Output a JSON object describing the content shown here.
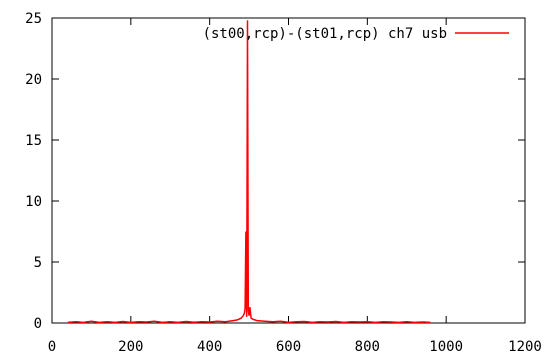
{
  "chart_data": {
    "type": "line",
    "title": "",
    "xlabel": "",
    "ylabel": "",
    "xlim": [
      0,
      1200
    ],
    "ylim": [
      0,
      25
    ],
    "x_ticks": [
      0,
      200,
      400,
      600,
      800,
      1000,
      1200
    ],
    "y_ticks": [
      0,
      5,
      10,
      15,
      20,
      25
    ],
    "x_tick_labels": [
      "0",
      "200",
      "400",
      "600",
      "800",
      "1000",
      "1200"
    ],
    "y_tick_labels": [
      "0",
      "5",
      "10",
      "15",
      "20",
      "25"
    ],
    "grid": false,
    "legend_position": "top-right",
    "series": [
      {
        "name": "(st00,rcp)-(st01,rcp) ch7 usb",
        "color": "#ff0000",
        "points": [
          [
            40,
            0.05
          ],
          [
            60,
            0.1
          ],
          [
            80,
            0.05
          ],
          [
            100,
            0.15
          ],
          [
            120,
            0.05
          ],
          [
            140,
            0.1
          ],
          [
            160,
            0.05
          ],
          [
            180,
            0.12
          ],
          [
            200,
            0.05
          ],
          [
            220,
            0.1
          ],
          [
            240,
            0.08
          ],
          [
            260,
            0.15
          ],
          [
            280,
            0.05
          ],
          [
            300,
            0.1
          ],
          [
            320,
            0.05
          ],
          [
            340,
            0.12
          ],
          [
            360,
            0.06
          ],
          [
            380,
            0.1
          ],
          [
            400,
            0.08
          ],
          [
            420,
            0.15
          ],
          [
            440,
            0.1
          ],
          [
            460,
            0.2
          ],
          [
            470,
            0.25
          ],
          [
            480,
            0.4
          ],
          [
            485,
            0.6
          ],
          [
            488,
            0.8
          ],
          [
            490,
            1.2
          ],
          [
            492,
            7.5
          ],
          [
            494,
            0.5
          ],
          [
            496,
            24.8
          ],
          [
            498,
            1.0
          ],
          [
            500,
            0.6
          ],
          [
            502,
            1.3
          ],
          [
            505,
            0.4
          ],
          [
            510,
            0.3
          ],
          [
            520,
            0.2
          ],
          [
            540,
            0.15
          ],
          [
            560,
            0.1
          ],
          [
            580,
            0.15
          ],
          [
            600,
            0.05
          ],
          [
            620,
            0.1
          ],
          [
            640,
            0.12
          ],
          [
            660,
            0.05
          ],
          [
            680,
            0.1
          ],
          [
            700,
            0.08
          ],
          [
            720,
            0.12
          ],
          [
            740,
            0.05
          ],
          [
            760,
            0.1
          ],
          [
            780,
            0.08
          ],
          [
            800,
            0.1
          ],
          [
            820,
            0.05
          ],
          [
            840,
            0.1
          ],
          [
            860,
            0.08
          ],
          [
            880,
            0.05
          ],
          [
            900,
            0.1
          ],
          [
            920,
            0.05
          ],
          [
            940,
            0.08
          ],
          [
            960,
            0.05
          ]
        ]
      }
    ]
  }
}
